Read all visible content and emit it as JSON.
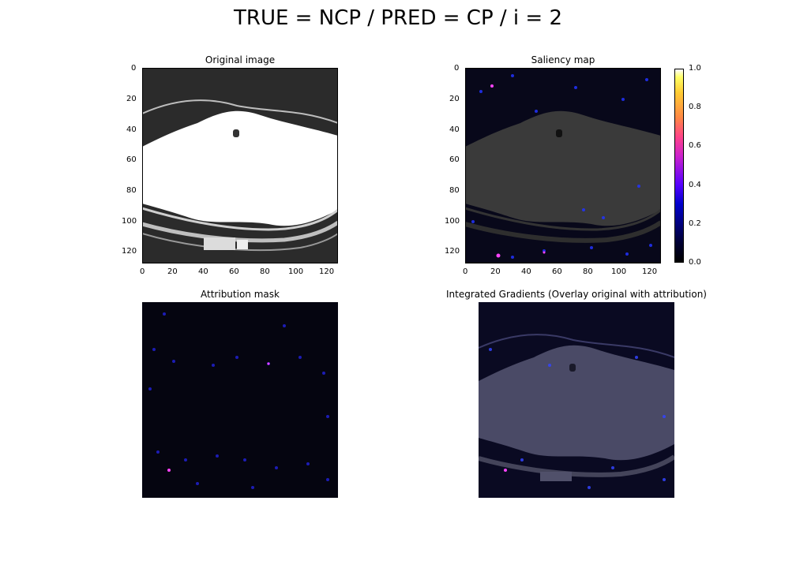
{
  "figure": {
    "suptitle": "TRUE = NCP / PRED = CP / i = 2"
  },
  "chart_data": [
    {
      "type": "heatmap",
      "panel": "original",
      "title": "Original image",
      "xlim": [
        0,
        128
      ],
      "ylim": [
        128,
        0
      ],
      "xticks": [
        "0",
        "20",
        "40",
        "60",
        "80",
        "100",
        "120"
      ],
      "yticks": [
        "0",
        "20",
        "40",
        "60",
        "80",
        "100",
        "120"
      ],
      "colormap": "gray"
    },
    {
      "type": "heatmap",
      "panel": "saliency",
      "title": "Saliency map",
      "xlim": [
        0,
        128
      ],
      "ylim": [
        128,
        0
      ],
      "xticks": [
        "0",
        "20",
        "40",
        "60",
        "80",
        "100",
        "120"
      ],
      "yticks": [
        "0",
        "20",
        "40",
        "60",
        "80",
        "100",
        "120"
      ],
      "colormap": "gnuplot2",
      "colorbar": {
        "range": [
          0.0,
          1.0
        ],
        "ticks": [
          "0.0",
          "0.2",
          "0.4",
          "0.6",
          "0.8",
          "1.0"
        ]
      }
    },
    {
      "type": "heatmap",
      "panel": "attribution",
      "title": "Attribution mask",
      "colormap": "gnuplot2"
    },
    {
      "type": "heatmap",
      "panel": "overlay",
      "title": "Integrated Gradients (Overlay original with attribution)",
      "colormap": "gnuplot2"
    }
  ],
  "colors": {
    "background": "#ffffff",
    "panel_bg": "#000000",
    "organ": "#ffffff",
    "saliency_point": "#2233ff",
    "hot_point": "#ff44ff"
  }
}
